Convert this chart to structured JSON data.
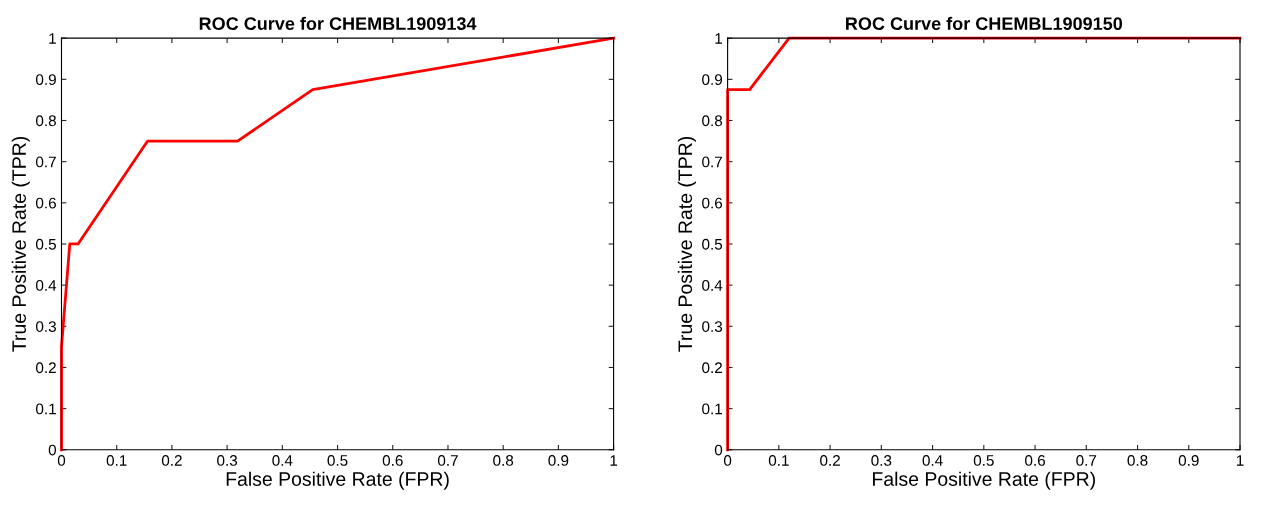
{
  "chart_data": [
    {
      "type": "line",
      "title": "ROC Curve for CHEMBL1909134",
      "xlabel": "False Positive Rate (FPR)",
      "ylabel": "True Positive Rate (TPR)",
      "xlim": [
        0,
        1
      ],
      "ylim": [
        0,
        1
      ],
      "xticks": [
        0,
        0.1,
        0.2,
        0.3,
        0.4,
        0.5,
        0.6,
        0.7,
        0.8,
        0.9,
        1
      ],
      "yticks": [
        0,
        0.1,
        0.2,
        0.3,
        0.4,
        0.5,
        0.6,
        0.7,
        0.8,
        0.9,
        1
      ],
      "grid": false,
      "legend": false,
      "marker": "none",
      "line_style": "solid",
      "series": [
        {
          "color": "#ff0000",
          "x": [
            0,
            0,
            0.015,
            0.03,
            0.156,
            0.319,
            0.455,
            1
          ],
          "values": [
            0,
            0.25,
            0.5,
            0.5,
            0.75,
            0.75,
            0.875,
            1
          ]
        }
      ]
    },
    {
      "type": "line",
      "title": "ROC Curve for CHEMBL1909150",
      "xlabel": "False Positive Rate (FPR)",
      "ylabel": "True Positive Rate (TPR)",
      "xlim": [
        0,
        1
      ],
      "ylim": [
        0,
        1
      ],
      "xticks": [
        0,
        0.1,
        0.2,
        0.3,
        0.4,
        0.5,
        0.6,
        0.7,
        0.8,
        0.9,
        1
      ],
      "yticks": [
        0,
        0.1,
        0.2,
        0.3,
        0.4,
        0.5,
        0.6,
        0.7,
        0.8,
        0.9,
        1
      ],
      "grid": false,
      "legend": false,
      "marker": "none",
      "line_style": "solid",
      "series": [
        {
          "color": "#ff0000",
          "x": [
            0,
            0,
            0.043,
            0.12,
            1
          ],
          "values": [
            0,
            0.875,
            0.875,
            1,
            1
          ]
        }
      ]
    }
  ]
}
